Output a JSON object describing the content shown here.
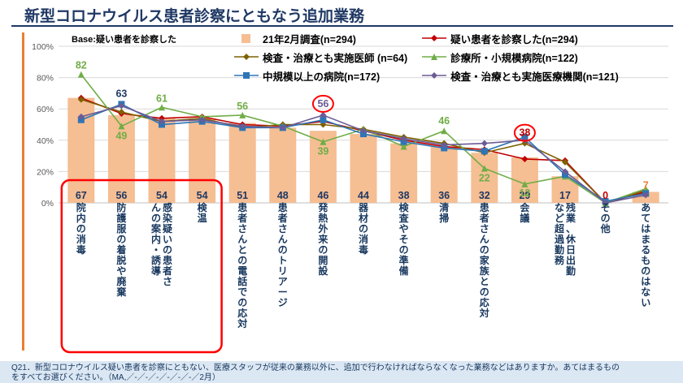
{
  "page": {
    "title": "新型コロナウイルス患者診察にともなう追加業務",
    "base_note": "Base:疑い患者を診察した",
    "footer_line1": "Q21．新型コロナウイルス疑い患者を診察にともない、医療スタッフが従来の業務以外に、追加で行わなければならなくなった業務などはありますか。あてはまるもの",
    "footer_line2": "をすべてお選びください。（MA,／-／-／-／-／-／-／2月）"
  },
  "colors": {
    "accent_navy": "#1F3864",
    "accent_orange": "#ED7D31",
    "grid": "#D9D9D9",
    "axis_line": "#BFBFBF",
    "axis_text": "#595959",
    "category_text": "#17375E",
    "highlight_red": "#FF0000",
    "footer_bg": "#DBE7F3"
  },
  "chart_data": {
    "type": "bar",
    "title": "新型コロナウイルス患者診察にともなう追加業務",
    "ylim": [
      0,
      100
    ],
    "yticks": [
      "0%",
      "20%",
      "40%",
      "60%",
      "80%",
      "100%"
    ],
    "grid": true,
    "legend_position": "top",
    "categories": [
      "院内の消毒",
      "防護服の着脱や廃棄",
      "感染疑いの患者さんの案内・誘導",
      "検温",
      "患者さんとの電話での応対",
      "患者さんのトリアージ",
      "発熱外来の開設",
      "器材の消毒",
      "検査やその準備",
      "清掃",
      "患者さんの家族との応対",
      "会議",
      "残業、休日出勤など超過勤務",
      "その他",
      "あてはまるものはない"
    ],
    "bars": {
      "name": "21年2月調査(n=294)",
      "color": "#F5BE93",
      "values": [
        67,
        56,
        54,
        54,
        51,
        48,
        46,
        44,
        38,
        36,
        32,
        29,
        17,
        0,
        7
      ]
    },
    "series": [
      {
        "name": "疑い患者を診察した(n=294)",
        "color": "#C00000",
        "marker": "diamond",
        "values": [
          67,
          57,
          54,
          55,
          50,
          49,
          52,
          46,
          40,
          36,
          34,
          28,
          27,
          0,
          7
        ]
      },
      {
        "name": "検査・治療とも実施医師 (n=64)",
        "color": "#7F6000",
        "marker": "diamond",
        "values": [
          66,
          58,
          52,
          54,
          48,
          50,
          50,
          47,
          42,
          38,
          32,
          38,
          26,
          0,
          8
        ]
      },
      {
        "name": "診療所・小規模病院(n=122)",
        "color": "#70AD47",
        "marker": "triangle",
        "values": [
          82,
          49,
          61,
          55,
          56,
          49,
          39,
          47,
          36,
          46,
          22,
          12,
          17,
          0,
          9
        ]
      },
      {
        "name": "中規模以上の病院(n=172)",
        "color": "#2E75B6",
        "marker": "square",
        "values": [
          53,
          63,
          50,
          52,
          48,
          48,
          53,
          44,
          39,
          35,
          33,
          42,
          18,
          1,
          6
        ]
      },
      {
        "name": "検査・治療とも実施医療機関(n=121)",
        "color": "#6B5B95",
        "marker": "diamond",
        "values": [
          55,
          62,
          52,
          53,
          49,
          48,
          56,
          46,
          41,
          37,
          38,
          40,
          20,
          0,
          5
        ]
      }
    ],
    "point_labels": [
      {
        "cat": 0,
        "text": "82",
        "pct": 82,
        "dy": -7,
        "color": "#70AD47",
        "circled": false
      },
      {
        "cat": 1,
        "text": "49",
        "pct": 49,
        "dy": 16,
        "color": "#70AD47",
        "circled": false
      },
      {
        "cat": 1,
        "text": "63",
        "pct": 63,
        "dy": -9,
        "color": "#1F3864",
        "circled": false
      },
      {
        "cat": 2,
        "text": "61",
        "pct": 61,
        "dy": -7,
        "color": "#70AD47",
        "circled": false
      },
      {
        "cat": 4,
        "text": "56",
        "pct": 56,
        "dy": -7,
        "color": "#70AD47",
        "circled": false
      },
      {
        "cat": 6,
        "text": "39",
        "pct": 39,
        "dy": 16,
        "color": "#70AD47",
        "circled": false
      },
      {
        "cat": 6,
        "text": "56",
        "pct": 56,
        "dy": -10,
        "color": "#6B5B95",
        "circled": true
      },
      {
        "cat": 9,
        "text": "46",
        "pct": 46,
        "dy": -8,
        "color": "#70AD47",
        "circled": false
      },
      {
        "cat": 10,
        "text": "22",
        "pct": 22,
        "dy": 16,
        "color": "#70AD47",
        "circled": false
      },
      {
        "cat": 11,
        "text": "12",
        "pct": 12,
        "dy": 15,
        "color": "#70AD47",
        "circled": false
      },
      {
        "cat": 11,
        "text": "38",
        "pct": 38,
        "dy": -9,
        "color": "#C00000",
        "circled": true
      },
      {
        "cat": 13,
        "text": "0",
        "pct": 0,
        "dy": -5,
        "color": "#C00000",
        "circled": false
      },
      {
        "cat": 14,
        "text": "7",
        "pct": 7,
        "dy": -4,
        "color": "#ED7D31",
        "circled": false
      }
    ],
    "highlight_box": {
      "from_cat": 0,
      "to_cat": 3
    }
  }
}
